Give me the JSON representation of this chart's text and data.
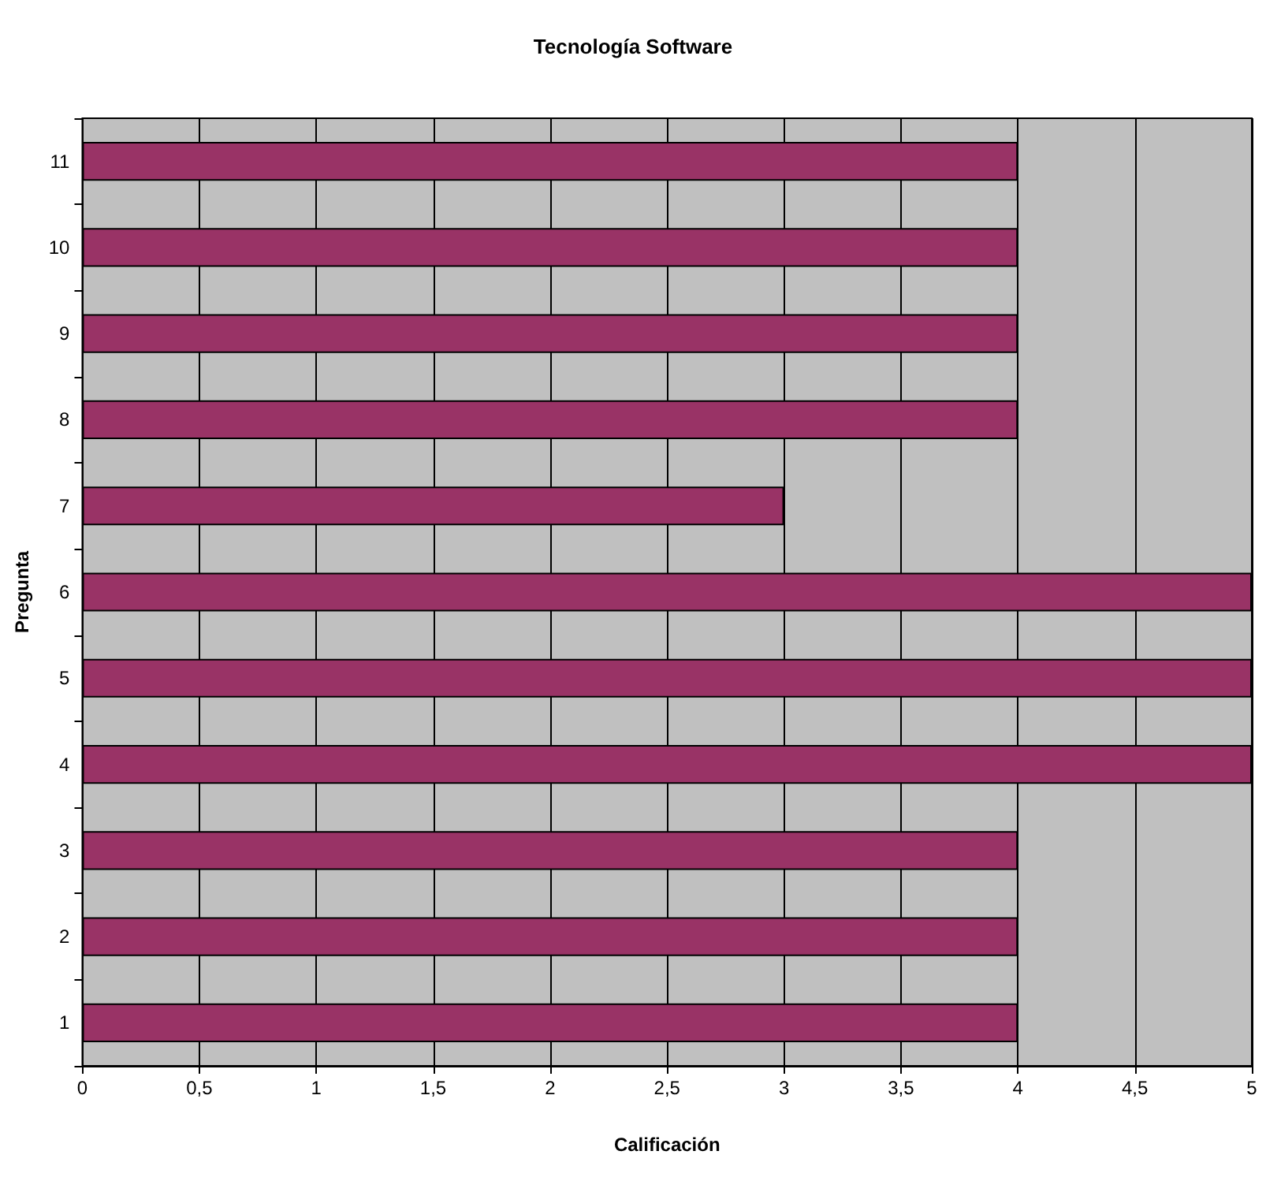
{
  "chart_data": {
    "type": "bar",
    "orientation": "horizontal",
    "title": "Tecnología Software",
    "xlabel": "Calificación",
    "ylabel": "Pregunta",
    "categories": [
      "11",
      "10",
      "9",
      "8",
      "7",
      "6",
      "5",
      "4",
      "3",
      "2",
      "1"
    ],
    "series": [
      {
        "color": "#993366",
        "values": [
          4,
          4,
          4,
          4,
          3,
          5,
          5,
          5,
          4,
          4,
          4
        ]
      }
    ],
    "xlim": [
      0,
      5
    ],
    "xticks": [
      0,
      {
        "value": 0.5,
        "label": "0,5"
      },
      1,
      {
        "value": 1.5,
        "label": "1,5"
      },
      2,
      {
        "value": 2.5,
        "label": "2,5"
      },
      3,
      {
        "value": 3.5,
        "label": "3,5"
      },
      4,
      {
        "value": 4.5,
        "label": "4,5"
      },
      5
    ],
    "grid": "x"
  }
}
